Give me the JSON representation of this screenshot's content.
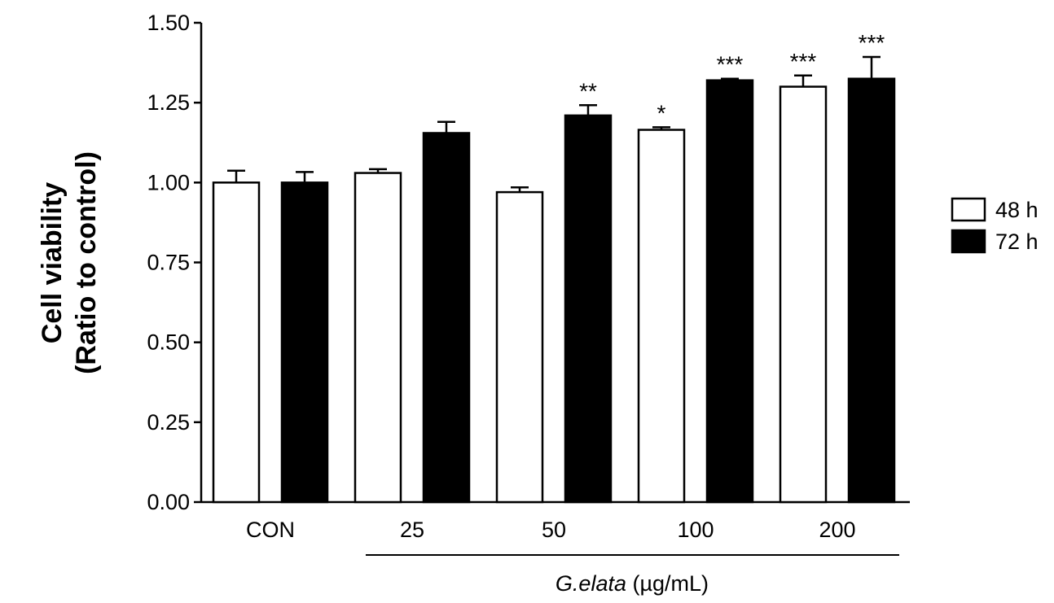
{
  "chart_data": {
    "type": "bar",
    "title": "",
    "ylabel_line1": "Cell viability",
    "ylabel_line2": "(Ratio to control)",
    "xlabel_italic": "G.elata",
    "xlabel_unit": " (µg/mL)",
    "ylim": [
      0,
      1.5
    ],
    "yticks": [
      "0.00",
      "0.25",
      "0.50",
      "0.75",
      "1.00",
      "1.25",
      "1.50"
    ],
    "categories": [
      "CON",
      "25",
      "50",
      "100",
      "200"
    ],
    "series": [
      {
        "name": "48 h",
        "color": "#ffffff",
        "values": [
          1.0,
          1.03,
          0.97,
          1.165,
          1.3
        ],
        "errors": [
          0.037,
          0.012,
          0.015,
          0.008,
          0.035
        ],
        "significance": [
          "",
          "",
          "",
          "*",
          "***"
        ]
      },
      {
        "name": "72 h",
        "color": "#000000",
        "values": [
          1.0,
          1.155,
          1.21,
          1.32,
          1.325
        ],
        "errors": [
          0.033,
          0.035,
          0.032,
          0.005,
          0.068
        ],
        "significance": [
          "",
          "",
          "**",
          "***",
          "***"
        ]
      }
    ],
    "legend_position": "right",
    "grid": false
  }
}
